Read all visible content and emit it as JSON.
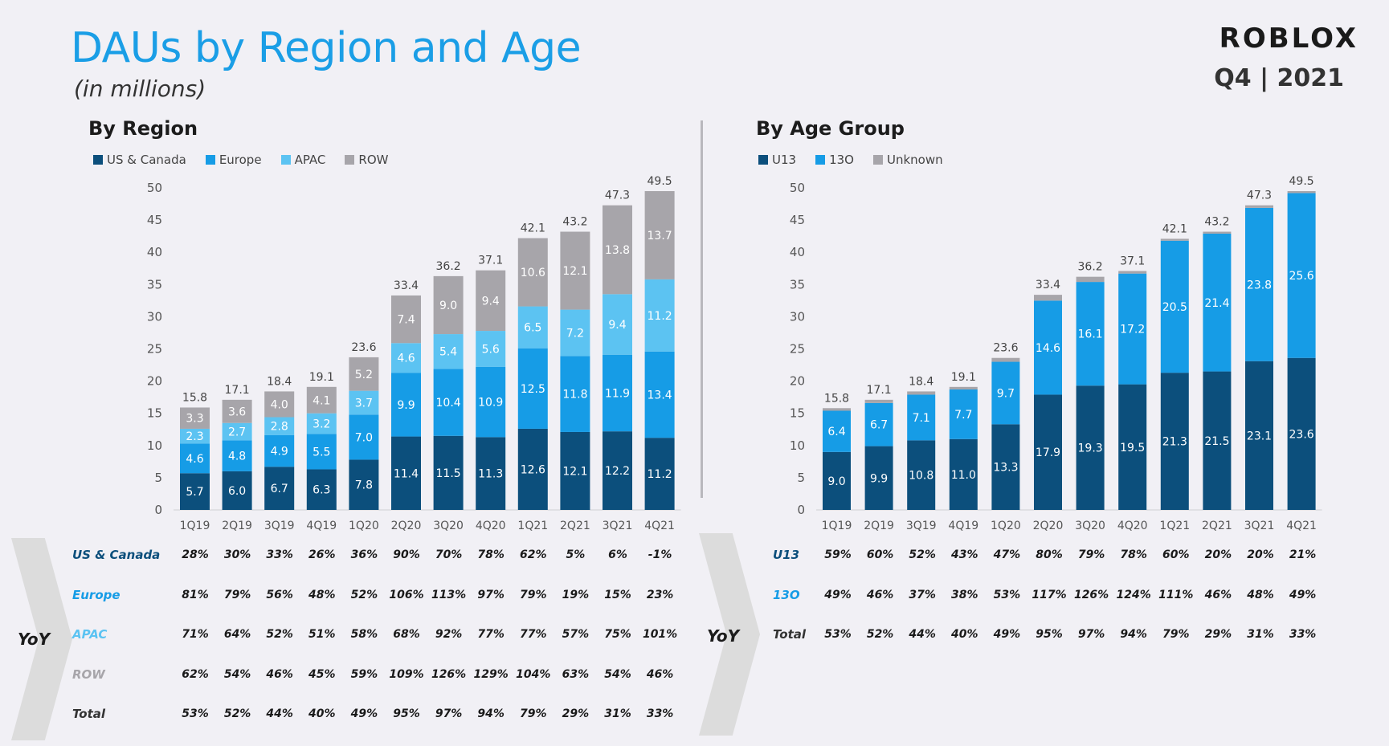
{
  "header": {
    "title": "DAUs by Region and Age",
    "subtitle": "(in millions)",
    "logo_text": "ROBLOX",
    "period": "Q4 | 2021"
  },
  "colors": {
    "title": "#1a9ee6",
    "dark_blue": "#0c4f7c",
    "blue": "#169ce6",
    "light_blue": "#5cc3f2",
    "gray": "#a7a5aa"
  },
  "region_panel": {
    "title": "By Region",
    "legend": [
      "US & Canada",
      "Europe",
      "APAC",
      "ROW"
    ],
    "yoy_label": "YoY",
    "yoy_rows": [
      {
        "label": "US & Canada",
        "color": "#0c4f7c",
        "values": [
          "28%",
          "30%",
          "33%",
          "26%",
          "36%",
          "90%",
          "70%",
          "78%",
          "62%",
          "5%",
          "6%",
          "-1%"
        ]
      },
      {
        "label": "Europe",
        "color": "#169ce6",
        "values": [
          "81%",
          "79%",
          "56%",
          "48%",
          "52%",
          "106%",
          "113%",
          "97%",
          "79%",
          "19%",
          "15%",
          "23%"
        ]
      },
      {
        "label": "APAC",
        "color": "#5cc3f2",
        "values": [
          "71%",
          "64%",
          "52%",
          "51%",
          "58%",
          "68%",
          "92%",
          "77%",
          "77%",
          "57%",
          "75%",
          "101%"
        ]
      },
      {
        "label": "ROW",
        "color": "#a7a5aa",
        "values": [
          "62%",
          "54%",
          "46%",
          "45%",
          "59%",
          "109%",
          "126%",
          "129%",
          "104%",
          "63%",
          "54%",
          "46%"
        ]
      },
      {
        "label": "Total",
        "color": "#333333",
        "values": [
          "53%",
          "52%",
          "44%",
          "40%",
          "49%",
          "95%",
          "97%",
          "94%",
          "79%",
          "29%",
          "31%",
          "33%"
        ]
      }
    ]
  },
  "age_panel": {
    "title": "By Age Group",
    "legend": [
      "U13",
      "13O",
      "Unknown"
    ],
    "yoy_label": "YoY",
    "yoy_rows": [
      {
        "label": "U13",
        "color": "#0c4f7c",
        "values": [
          "59%",
          "60%",
          "52%",
          "43%",
          "47%",
          "80%",
          "79%",
          "78%",
          "60%",
          "20%",
          "20%",
          "21%"
        ]
      },
      {
        "label": "13O",
        "color": "#169ce6",
        "values": [
          "49%",
          "46%",
          "37%",
          "38%",
          "53%",
          "117%",
          "126%",
          "124%",
          "111%",
          "46%",
          "48%",
          "49%"
        ]
      },
      {
        "label": "Total",
        "color": "#333333",
        "values": [
          "53%",
          "52%",
          "44%",
          "40%",
          "49%",
          "95%",
          "97%",
          "94%",
          "79%",
          "29%",
          "31%",
          "33%"
        ]
      }
    ]
  },
  "chart_data": [
    {
      "type": "bar",
      "stacked": true,
      "title": "By Region",
      "categories": [
        "1Q19",
        "2Q19",
        "3Q19",
        "4Q19",
        "1Q20",
        "2Q20",
        "3Q20",
        "4Q20",
        "1Q21",
        "2Q21",
        "3Q21",
        "4Q21"
      ],
      "ylim": [
        0,
        50
      ],
      "yticks": [
        0,
        5,
        10,
        15,
        20,
        25,
        30,
        35,
        40,
        45,
        50
      ],
      "legend_position": "top-left",
      "series": [
        {
          "name": "US & Canada",
          "color": "#0c4f7c",
          "label_color": "#ffffff",
          "values": [
            5.7,
            6.0,
            6.7,
            6.3,
            7.8,
            11.4,
            11.5,
            11.3,
            12.6,
            12.1,
            12.2,
            11.2
          ]
        },
        {
          "name": "Europe",
          "color": "#169ce6",
          "label_color": "#ffffff",
          "values": [
            4.6,
            4.8,
            4.9,
            5.5,
            7.0,
            9.9,
            10.4,
            10.9,
            12.5,
            11.8,
            11.9,
            13.4
          ]
        },
        {
          "name": "APAC",
          "color": "#5cc3f2",
          "label_color": "#ffffff",
          "values": [
            2.3,
            2.7,
            2.8,
            3.2,
            3.7,
            4.6,
            5.4,
            5.6,
            6.5,
            7.2,
            9.4,
            11.2
          ]
        },
        {
          "name": "ROW",
          "color": "#a7a5aa",
          "label_color": "#ffffff",
          "values": [
            3.3,
            3.6,
            4.0,
            4.1,
            5.2,
            7.4,
            9.0,
            9.4,
            10.6,
            12.1,
            13.8,
            13.7
          ]
        }
      ],
      "totals": [
        "15.8",
        "17.1",
        "18.4",
        "19.1",
        "23.6",
        "33.4",
        "36.2",
        "37.1",
        "42.1",
        "43.2",
        "47.3",
        "49.5"
      ]
    },
    {
      "type": "bar",
      "stacked": true,
      "title": "By Age Group",
      "categories": [
        "1Q19",
        "2Q19",
        "3Q19",
        "4Q19",
        "1Q20",
        "2Q20",
        "3Q20",
        "4Q20",
        "1Q21",
        "2Q21",
        "3Q21",
        "4Q21"
      ],
      "ylim": [
        0,
        50
      ],
      "yticks": [
        0,
        5,
        10,
        15,
        20,
        25,
        30,
        35,
        40,
        45,
        50
      ],
      "legend_position": "top-left",
      "series": [
        {
          "name": "U13",
          "color": "#0c4f7c",
          "label_color": "#ffffff",
          "values": [
            9.0,
            9.9,
            10.8,
            11.0,
            13.3,
            17.9,
            19.3,
            19.5,
            21.3,
            21.5,
            23.1,
            23.6
          ]
        },
        {
          "name": "13O",
          "color": "#169ce6",
          "label_color": "#ffffff",
          "values": [
            6.4,
            6.7,
            7.1,
            7.7,
            9.7,
            14.6,
            16.1,
            17.2,
            20.5,
            21.4,
            23.8,
            25.6
          ]
        },
        {
          "name": "Unknown",
          "color": "#a7a5aa",
          "label_color": "#ffffff",
          "values": [
            0.4,
            0.5,
            0.5,
            0.4,
            0.6,
            0.9,
            0.8,
            0.4,
            0.3,
            0.3,
            0.4,
            0.3
          ],
          "labels_hidden": true
        }
      ],
      "totals": [
        "15.8",
        "17.1",
        "18.4",
        "19.1",
        "23.6",
        "33.4",
        "36.2",
        "37.1",
        "42.1",
        "43.2",
        "47.3",
        "49.5"
      ]
    }
  ]
}
